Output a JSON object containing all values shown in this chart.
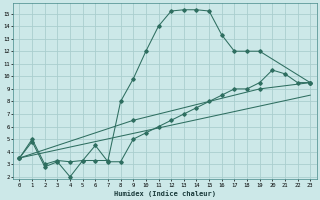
{
  "xlabel": "Humidex (Indice chaleur)",
  "bg_color": "#cce8e8",
  "grid_color": "#aacece",
  "line_color": "#2e6e60",
  "xlim": [
    -0.5,
    23.5
  ],
  "ylim": [
    1.8,
    15.8
  ],
  "xticks": [
    0,
    1,
    2,
    3,
    4,
    5,
    6,
    7,
    8,
    9,
    10,
    11,
    12,
    13,
    14,
    15,
    16,
    17,
    18,
    19,
    20,
    21,
    22,
    23
  ],
  "yticks": [
    2,
    3,
    4,
    5,
    6,
    7,
    8,
    9,
    10,
    11,
    12,
    13,
    14,
    15
  ],
  "line1_x": [
    0,
    1,
    2,
    3,
    4,
    5,
    6,
    7,
    8,
    9,
    10,
    11,
    12,
    13,
    14,
    15,
    16,
    17,
    18,
    19,
    23
  ],
  "line1_y": [
    3.5,
    5.0,
    3.0,
    3.3,
    3.2,
    3.3,
    3.3,
    3.3,
    8.0,
    9.8,
    12.0,
    14.0,
    15.2,
    15.3,
    15.3,
    15.2,
    13.3,
    12.0,
    12.0,
    12.0,
    9.5
  ],
  "line2_x": [
    0,
    1,
    2,
    3,
    4,
    5,
    6,
    7,
    8,
    9,
    10,
    11,
    12,
    13,
    14,
    15,
    16,
    17,
    18,
    19,
    20,
    21,
    22,
    23
  ],
  "line2_y": [
    3.5,
    4.8,
    2.8,
    3.2,
    2.0,
    3.3,
    4.5,
    3.2,
    3.2,
    5.0,
    5.5,
    6.0,
    6.5,
    7.0,
    7.5,
    8.0,
    8.5,
    9.0,
    9.0,
    9.5,
    10.5,
    10.2,
    9.5,
    9.5
  ],
  "line3_x": [
    0,
    23
  ],
  "line3_y": [
    3.5,
    8.5
  ],
  "line4_x": [
    0,
    9,
    19,
    23
  ],
  "line4_y": [
    3.5,
    6.5,
    9.0,
    9.5
  ]
}
